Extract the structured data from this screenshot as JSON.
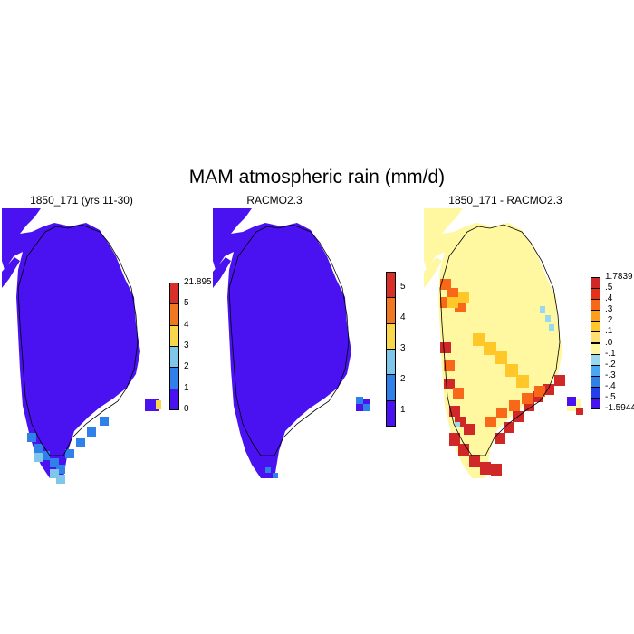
{
  "figure": {
    "title": "MAM atmospheric rain (mm/d)"
  },
  "panels": [
    {
      "title": "1850_171 (yrs 11-30)",
      "fill": "#4a12f0",
      "colorbar": {
        "colors": [
          "#4a12f0",
          "#2f80e8",
          "#7ec6ea",
          "#f8d84a",
          "#f07820",
          "#d83028"
        ],
        "labels": [
          "0",
          "1",
          "2",
          "3",
          "4",
          "5",
          "21.895"
        ]
      }
    },
    {
      "title": "RACMO2.3",
      "fill": "#4a12f0",
      "colorbar": {
        "colors": [
          "#4a12f0",
          "#2f80e8",
          "#7ec6ea",
          "#f8d84a",
          "#f07820",
          "#d83028"
        ],
        "labels": [
          "1",
          "2",
          "3",
          "4",
          "5"
        ]
      }
    },
    {
      "title": "1850_171 - RACMO2.3",
      "fill": "#fff8a0",
      "colorbar": {
        "colors": [
          "#4a12f0",
          "#2440e8",
          "#2f80e8",
          "#48a8f0",
          "#9ad8f0",
          "#fff8a0",
          "#ffe070",
          "#ffc828",
          "#ff9e18",
          "#f86818",
          "#e83018",
          "#d02828"
        ],
        "labels": [
          "-1.5944",
          "-.5",
          "-.4",
          "-.3",
          "-.2",
          "-.1",
          ".0",
          ".1",
          ".2",
          ".3",
          ".4",
          ".5",
          "1.7839"
        ]
      }
    }
  ]
}
